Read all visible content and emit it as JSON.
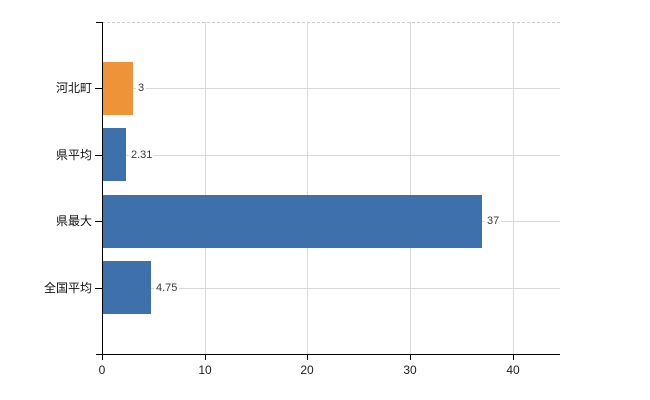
{
  "chart_data": {
    "type": "bar",
    "orientation": "horizontal",
    "categories": [
      "河北町",
      "県平均",
      "県最大",
      "全国平均"
    ],
    "values": [
      3,
      2.31,
      37,
      4.75
    ],
    "value_labels": [
      "3",
      "2.31",
      "37",
      "4.75"
    ],
    "bar_colors": [
      "#EE9338",
      "#3E71AB",
      "#3E71AB",
      "#3E71AB"
    ],
    "xticks": [
      0,
      10,
      20,
      30,
      40
    ],
    "xtick_labels": [
      "0",
      "10",
      "20",
      "30",
      "40"
    ],
    "xlim": [
      0,
      44.6
    ],
    "grid": true,
    "legend": false
  }
}
